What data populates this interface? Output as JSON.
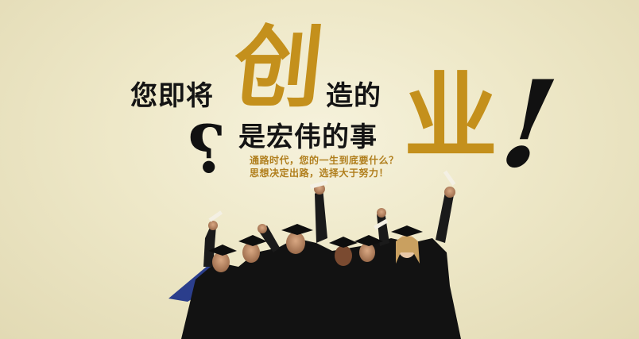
{
  "poster": {
    "line1_prefix": "您即将",
    "big_char_1": "创",
    "line1_suffix": "造的",
    "line2": "是宏伟的事",
    "big_char_2": "业",
    "exclamation": "!",
    "question": "?",
    "subtitle_1": "通路时代，您的一生到底要什么？",
    "subtitle_2": "思想决定出路，选择大于努力！"
  },
  "colors": {
    "background": "#efe9cb",
    "accent_gold": "#c4901c",
    "text_dark": "#141414",
    "gown": "#121212"
  }
}
